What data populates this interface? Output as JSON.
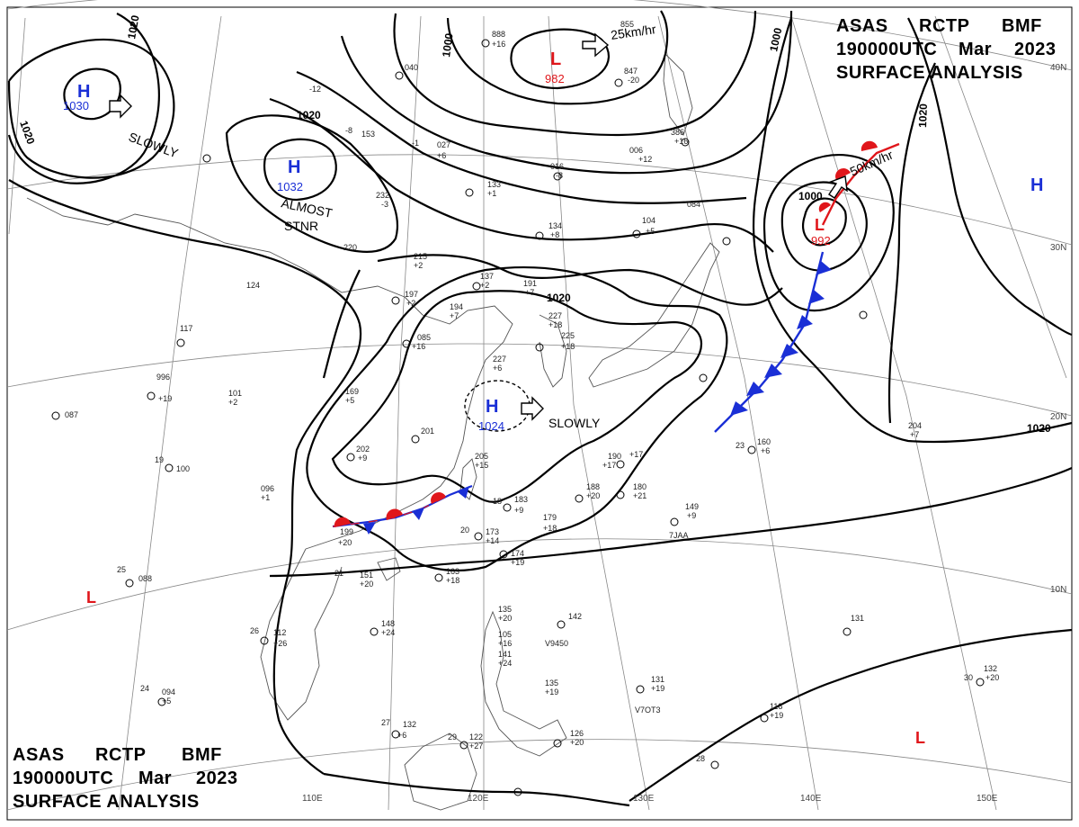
{
  "header": {
    "line1": [
      "ASAS",
      "RCTP",
      "BMF"
    ],
    "line2": [
      "190000UTC",
      "Mar",
      "2023"
    ],
    "line3": "SURFACE ANALYSIS"
  },
  "latitude_labels": [
    "40N",
    "30N",
    "20N",
    "10N"
  ],
  "longitude_labels": [
    "110E",
    "120E",
    "130E",
    "140E",
    "150E"
  ],
  "isobar_labels": [
    "1020",
    "1020",
    "1020",
    "1000",
    "1000",
    "1020",
    "1020",
    "1000",
    "1020"
  ],
  "pressure_systems": [
    {
      "type": "H",
      "value": "1030",
      "color": "#1a2fd6"
    },
    {
      "type": "H",
      "value": "1032",
      "color": "#1a2fd6"
    },
    {
      "type": "H",
      "value": "1024",
      "color": "#1a2fd6"
    },
    {
      "type": "H",
      "value": "",
      "color": "#1a2fd6"
    },
    {
      "type": "L",
      "value": "982",
      "color": "#e0161b"
    },
    {
      "type": "L",
      "value": "992",
      "color": "#e0161b"
    },
    {
      "type": "L",
      "value": "",
      "color": "#e0161b"
    },
    {
      "type": "L",
      "value": "",
      "color": "#e0161b"
    }
  ],
  "movement_labels": [
    "SLOWLY",
    "SLOWLY",
    "ALMOST",
    "STNR",
    "25km/hr",
    "50km/hr"
  ],
  "station_plots": [
    "888",
    "+16",
    "855",
    "847",
    "-20",
    "040",
    "-12",
    "-8",
    "153",
    "-1",
    "027",
    "+6",
    "133",
    "+1",
    "016",
    "-8",
    "006",
    "+12",
    "386",
    "+16",
    "104",
    "+5",
    "084",
    "134",
    "+8",
    "232",
    "-3",
    "220",
    "215",
    "+2",
    "197",
    "+2",
    "137",
    "+2",
    "191",
    "+7",
    "194",
    "+7",
    "085",
    "+16",
    "227",
    "+18",
    "225",
    "+18",
    "227",
    "+6",
    "124",
    "117",
    "996",
    "+19",
    "101",
    "+2",
    "169",
    "+5",
    "087",
    "100",
    "202",
    "+9",
    "201",
    "205",
    "+15",
    "199",
    "+20",
    "+17",
    "190",
    "+17",
    "180",
    "+21",
    "188",
    "+20",
    "183",
    "+9",
    "179",
    "+18",
    "173",
    "+14",
    "174",
    "+19",
    "163",
    "+18",
    "151",
    "+20",
    "148",
    "+24",
    "096",
    "+1",
    "088",
    "112",
    "+26",
    "094",
    "+5",
    "132",
    "+6",
    "122",
    "+27",
    "135",
    "+20",
    "105",
    "+16",
    "141",
    "+24",
    "142",
    "135",
    "+19",
    "126",
    "+20",
    "131",
    "+19",
    "118",
    "+19",
    "131",
    "132",
    "+20",
    "204",
    "+7",
    "160",
    "+6",
    "149",
    "+9",
    "7JAA",
    "V9450",
    "V7OT3",
    "18",
    "24",
    "19",
    "21",
    "23",
    "25",
    "26",
    "27",
    "28",
    "29",
    "30",
    "20"
  ]
}
